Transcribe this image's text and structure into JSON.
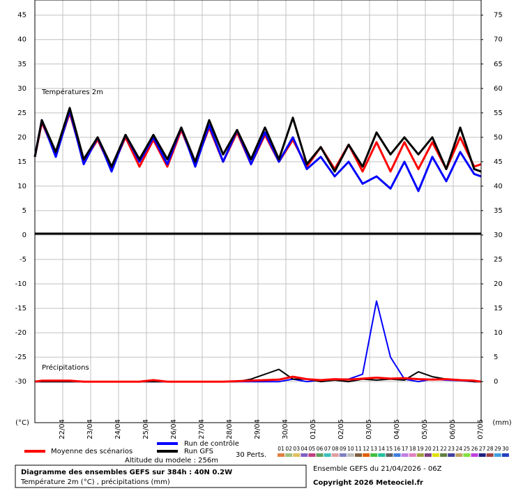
{
  "chart_data": {
    "type": "line",
    "annotations": [
      "Températures 2m",
      "Précipitations"
    ],
    "y_label": "(°C)",
    "y2_label": "(mm)",
    "x": [
      0,
      6,
      18,
      30,
      42,
      54,
      66,
      78,
      90,
      102,
      114,
      126,
      138,
      150,
      162,
      174,
      186,
      198,
      210,
      222,
      234,
      246,
      258,
      270,
      282,
      294,
      306,
      318,
      330,
      342,
      354,
      366,
      378,
      384
    ],
    "xlim": [
      0,
      384
    ],
    "xticks": [
      {
        "value": 18,
        "label": "22/04"
      },
      {
        "value": 42,
        "label": "23/04"
      },
      {
        "value": 66,
        "label": "24/04"
      },
      {
        "value": 90,
        "label": "25/04"
      },
      {
        "value": 114,
        "label": "26/04"
      },
      {
        "value": 138,
        "label": "27/04"
      },
      {
        "value": 162,
        "label": "28/04"
      },
      {
        "value": 186,
        "label": "29/04"
      },
      {
        "value": 210,
        "label": "30/04"
      },
      {
        "value": 234,
        "label": "01/05"
      },
      {
        "value": 258,
        "label": "02/05"
      },
      {
        "value": 282,
        "label": "03/05"
      },
      {
        "value": 306,
        "label": "04/05"
      },
      {
        "value": 330,
        "label": "05/05"
      },
      {
        "value": 354,
        "label": "06/05"
      },
      {
        "value": 378,
        "label": "07/05"
      }
    ],
    "ylim": [
      -38.4,
      48.1
    ],
    "yticks": [
      -30,
      -25,
      -20,
      -15,
      -10,
      -5,
      0,
      5,
      10,
      15,
      20,
      25,
      30,
      35,
      40,
      45
    ],
    "y2lim": [
      -8.4,
      78.1
    ],
    "y2ticks": [
      0,
      5,
      10,
      15,
      20,
      25,
      30,
      35,
      40,
      45,
      50,
      55,
      60,
      65,
      70,
      75
    ],
    "grid": true,
    "series": [
      {
        "name": "Moyenne des scénarios",
        "color": "#ff0000",
        "values": [
          16,
          23,
          16.5,
          25,
          15,
          19.5,
          13.5,
          20,
          14,
          19.5,
          14,
          21.5,
          14.5,
          22,
          15,
          21,
          14.5,
          20.5,
          15,
          19.5,
          14,
          18,
          13.5,
          18.5,
          13,
          19,
          13,
          19,
          13.5,
          19,
          13.5,
          20,
          14,
          14.5
        ]
      },
      {
        "name": "Run de contrôle",
        "color": "#0000ff",
        "values": [
          16,
          23.5,
          16,
          25.5,
          14.5,
          20,
          13,
          20.5,
          15,
          20,
          14.5,
          22,
          14,
          22.5,
          15,
          21.5,
          14.5,
          21,
          15,
          20,
          13.5,
          16,
          12,
          15,
          10.5,
          12,
          9.5,
          15,
          9,
          16,
          11,
          17,
          12.5,
          12
        ]
      },
      {
        "name": "Run GFS",
        "color": "#000000",
        "values": [
          16,
          23.5,
          17,
          26,
          15.5,
          20,
          14,
          20.5,
          15.5,
          20.5,
          15.5,
          22,
          15,
          23.5,
          16.5,
          21.5,
          15.5,
          22,
          15.5,
          24,
          14.5,
          18,
          13,
          18.5,
          14,
          21,
          16.5,
          20,
          16.5,
          20,
          13.5,
          22,
          13.5,
          13
        ]
      },
      {
        "axis": "y2",
        "color": "#0000ff",
        "values": [
          0,
          0,
          0,
          0,
          0,
          0,
          0,
          0,
          0,
          0,
          0,
          0,
          0,
          0,
          0,
          0,
          0,
          0,
          0,
          0.5,
          0,
          0.3,
          0.5,
          0.5,
          1.5,
          16.5,
          5,
          0.5,
          0,
          0.5,
          0.3,
          0.2,
          0,
          0
        ]
      },
      {
        "axis": "y2",
        "color": "#000000",
        "values": [
          0,
          0,
          0,
          0,
          0,
          0,
          0,
          0,
          0,
          0,
          0,
          0,
          0,
          0,
          0,
          0,
          0.5,
          1.5,
          2.5,
          0.5,
          0.5,
          0,
          0.3,
          0,
          0.5,
          0.3,
          0.5,
          0.3,
          2,
          1,
          0.5,
          0.3,
          0,
          0
        ]
      },
      {
        "axis": "y2",
        "color": "#ff0000",
        "values": [
          0,
          0.2,
          0.2,
          0.2,
          0,
          0,
          0,
          0,
          0,
          0.3,
          0,
          0,
          0,
          0,
          0,
          0.1,
          0.2,
          0.3,
          0.4,
          1,
          0.5,
          0.3,
          0.5,
          0.4,
          0.6,
          0.8,
          0.6,
          0.7,
          0.5,
          0.4,
          0.5,
          0.3,
          0.2,
          0
        ]
      }
    ],
    "perturbations_label": "30 Perts.",
    "perturbations": [
      {
        "name": "01",
        "color": "#e08040"
      },
      {
        "name": "02",
        "color": "#a0c080"
      },
      {
        "name": "03",
        "color": "#e0c060"
      },
      {
        "name": "04",
        "color": "#8060c0"
      },
      {
        "name": "05",
        "color": "#c04080"
      },
      {
        "name": "06",
        "color": "#60a060"
      },
      {
        "name": "07",
        "color": "#40c0c0"
      },
      {
        "name": "08",
        "color": "#e0a0a0"
      },
      {
        "name": "09",
        "color": "#8080c0"
      },
      {
        "name": "10",
        "color": "#c0c0c0"
      },
      {
        "name": "11",
        "color": "#806040"
      },
      {
        "name": "12",
        "color": "#e06000"
      },
      {
        "name": "13",
        "color": "#40c040"
      },
      {
        "name": "14",
        "color": "#20c0a0"
      },
      {
        "name": "15",
        "color": "#606060"
      },
      {
        "name": "16",
        "color": "#4080e0"
      },
      {
        "name": "17",
        "color": "#c080e0"
      },
      {
        "name": "18",
        "color": "#e080c0"
      },
      {
        "name": "19",
        "color": "#a0a040"
      },
      {
        "name": "20",
        "color": "#804080"
      },
      {
        "name": "21",
        "color": "#e0e000"
      },
      {
        "name": "22",
        "color": "#608040"
      },
      {
        "name": "23",
        "color": "#4040a0"
      },
      {
        "name": "24",
        "color": "#c0a060"
      },
      {
        "name": "25",
        "color": "#80e040"
      },
      {
        "name": "26",
        "color": "#c040e0"
      },
      {
        "name": "27",
        "color": "#202080"
      },
      {
        "name": "28",
        "color": "#a04040"
      },
      {
        "name": "29",
        "color": "#40a0e0"
      },
      {
        "name": "30",
        "color": "#2040c0"
      }
    ],
    "altitude": "Altitude du modele : 256m",
    "box_title": "Diagramme des ensembles GEFS sur 384h : 40N 0.2W",
    "box_subtitle": "Température 2m (°C) , précipitations (mm)",
    "run_info": "Ensemble GEFS du 21/04/2026 - 06Z",
    "copyright": "Copyright 2026 Meteociel.fr"
  }
}
